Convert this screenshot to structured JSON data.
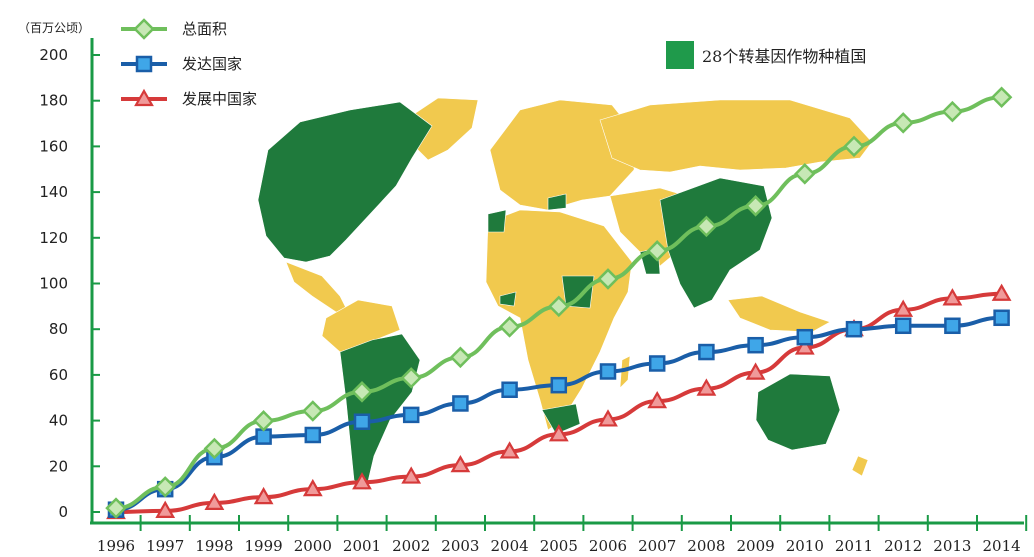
{
  "chart_data": {
    "type": "line",
    "unit_label": "（百万公顷）",
    "x": [
      "1996",
      "1997",
      "1998",
      "1999",
      "2000",
      "2001",
      "2002",
      "2003",
      "2004",
      "2005",
      "2006",
      "2007",
      "2008",
      "2009",
      "2010",
      "2011",
      "2012",
      "2013",
      "2014"
    ],
    "yticks": [
      "200",
      "180",
      "160",
      "140",
      "120",
      "100",
      "80",
      "60",
      "40",
      "20",
      "0"
    ],
    "ylim": [
      0,
      200
    ],
    "grid": false,
    "legend_position": "top-left",
    "series": [
      {
        "name": "总面积",
        "color": "#6fbf5c",
        "marker": "diamond",
        "values": [
          1.7,
          11,
          27.8,
          39.9,
          44.2,
          52.6,
          58.7,
          67.7,
          81.0,
          90.0,
          102.0,
          114.3,
          125.0,
          134.0,
          148.0,
          160.0,
          170.3,
          175.2,
          181.5
        ]
      },
      {
        "name": "发达国家",
        "color": "#1a5ea8",
        "marker": "square",
        "values": [
          1.0,
          10,
          24.0,
          33.0,
          33.7,
          39.5,
          42.5,
          47.5,
          53.5,
          55.5,
          61.5,
          65.0,
          70.0,
          73.0,
          76.5,
          80.0,
          81.5,
          81.5,
          85.0
        ]
      },
      {
        "name": "发展中国家",
        "color": "#d63a3a",
        "marker": "triangle",
        "values": [
          0.0,
          0.5,
          4.0,
          6.5,
          10.0,
          13.0,
          15.5,
          20.5,
          26.5,
          34.0,
          40.5,
          48.5,
          54.0,
          61.0,
          72.0,
          80.0,
          88.5,
          93.5,
          95.5
        ]
      }
    ],
    "annotation": {
      "text": "28个转基因作物种植国",
      "color": "#1f9a4b"
    },
    "background_map": {
      "planting_color": "#1f7a3c",
      "other_color": "#f1c94e"
    }
  }
}
